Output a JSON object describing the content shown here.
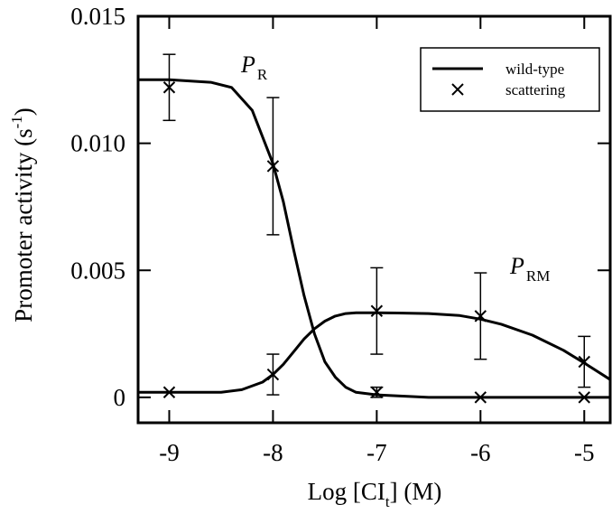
{
  "chart_data": {
    "type": "scatter",
    "xlabel": "Log [CI",
    "xlabel_sub": "t",
    "xlabel_unit": "] (M)",
    "ylabel": "Promoter activity (s",
    "ylabel_sup": "-1",
    "ylabel_end": ")",
    "xlim": [
      -9.3,
      -4.75
    ],
    "ylim": [
      -0.001,
      0.015
    ],
    "x_ticks": [
      -9,
      -8,
      -7,
      -6,
      -5
    ],
    "x_tick_labels": [
      "-9",
      "-8",
      "-7",
      "-6",
      "-5"
    ],
    "y_ticks": [
      0,
      0.005,
      0.01,
      0.015
    ],
    "y_tick_labels": [
      "0",
      "0.005",
      "0.010",
      "0.015"
    ],
    "legend": {
      "position": "top-right",
      "entries": [
        {
          "label": "wild-type",
          "marker": "line"
        },
        {
          "label": "scattering",
          "marker": "x"
        }
      ]
    },
    "annotations": [
      {
        "main": "P",
        "sub": "R",
        "x": -8.4,
        "y": 0.0126
      },
      {
        "main": "P",
        "sub": "RM",
        "x": -5.5,
        "y": 0.0044
      }
    ],
    "series": [
      {
        "kind": "line",
        "x": [
          -9.3,
          -9.0,
          -8.6,
          -8.4,
          -8.2,
          -8.0,
          -7.9,
          -7.8,
          -7.7,
          -7.6,
          -7.5,
          -7.4,
          -7.3,
          -7.2,
          -7.0,
          -6.5,
          -6.0,
          -5.5,
          -5.0,
          -4.75
        ],
        "y": [
          0.0125,
          0.0125,
          0.0124,
          0.0122,
          0.0113,
          0.0092,
          0.0077,
          0.0058,
          0.004,
          0.0025,
          0.0014,
          0.0008,
          0.0004,
          0.0002,
          0.0001,
          0.0,
          0.0,
          0.0,
          0.0,
          0.0
        ]
      },
      {
        "kind": "line",
        "x": [
          -9.3,
          -9.0,
          -8.5,
          -8.3,
          -8.1,
          -8.0,
          -7.9,
          -7.8,
          -7.7,
          -7.6,
          -7.5,
          -7.4,
          -7.3,
          -7.2,
          -7.0,
          -6.8,
          -6.5,
          -6.2,
          -6.0,
          -5.8,
          -5.5,
          -5.2,
          -5.0,
          -4.75
        ],
        "y": [
          0.0002,
          0.0002,
          0.0002,
          0.0003,
          0.0006,
          0.0009,
          0.0013,
          0.0018,
          0.0023,
          0.0027,
          0.003,
          0.0032,
          0.0033,
          0.00333,
          0.00333,
          0.00332,
          0.0033,
          0.00322,
          0.00308,
          0.00288,
          0.00245,
          0.00185,
          0.00135,
          0.0007
        ]
      },
      {
        "kind": "points",
        "x": [
          -9,
          -8,
          -7,
          -6,
          -5
        ],
        "y": [
          0.0122,
          0.0091,
          0.0002,
          0.0,
          0.0
        ],
        "err": [
          0.0013,
          0.0027,
          0.0002,
          0.0,
          0.0
        ]
      },
      {
        "kind": "points",
        "x": [
          -9,
          -8,
          -7,
          -6,
          -5
        ],
        "y": [
          0.0002,
          0.0009,
          0.0034,
          0.0032,
          0.0014
        ],
        "err": [
          0.0,
          0.0008,
          0.0017,
          0.0017,
          0.001
        ]
      }
    ]
  }
}
